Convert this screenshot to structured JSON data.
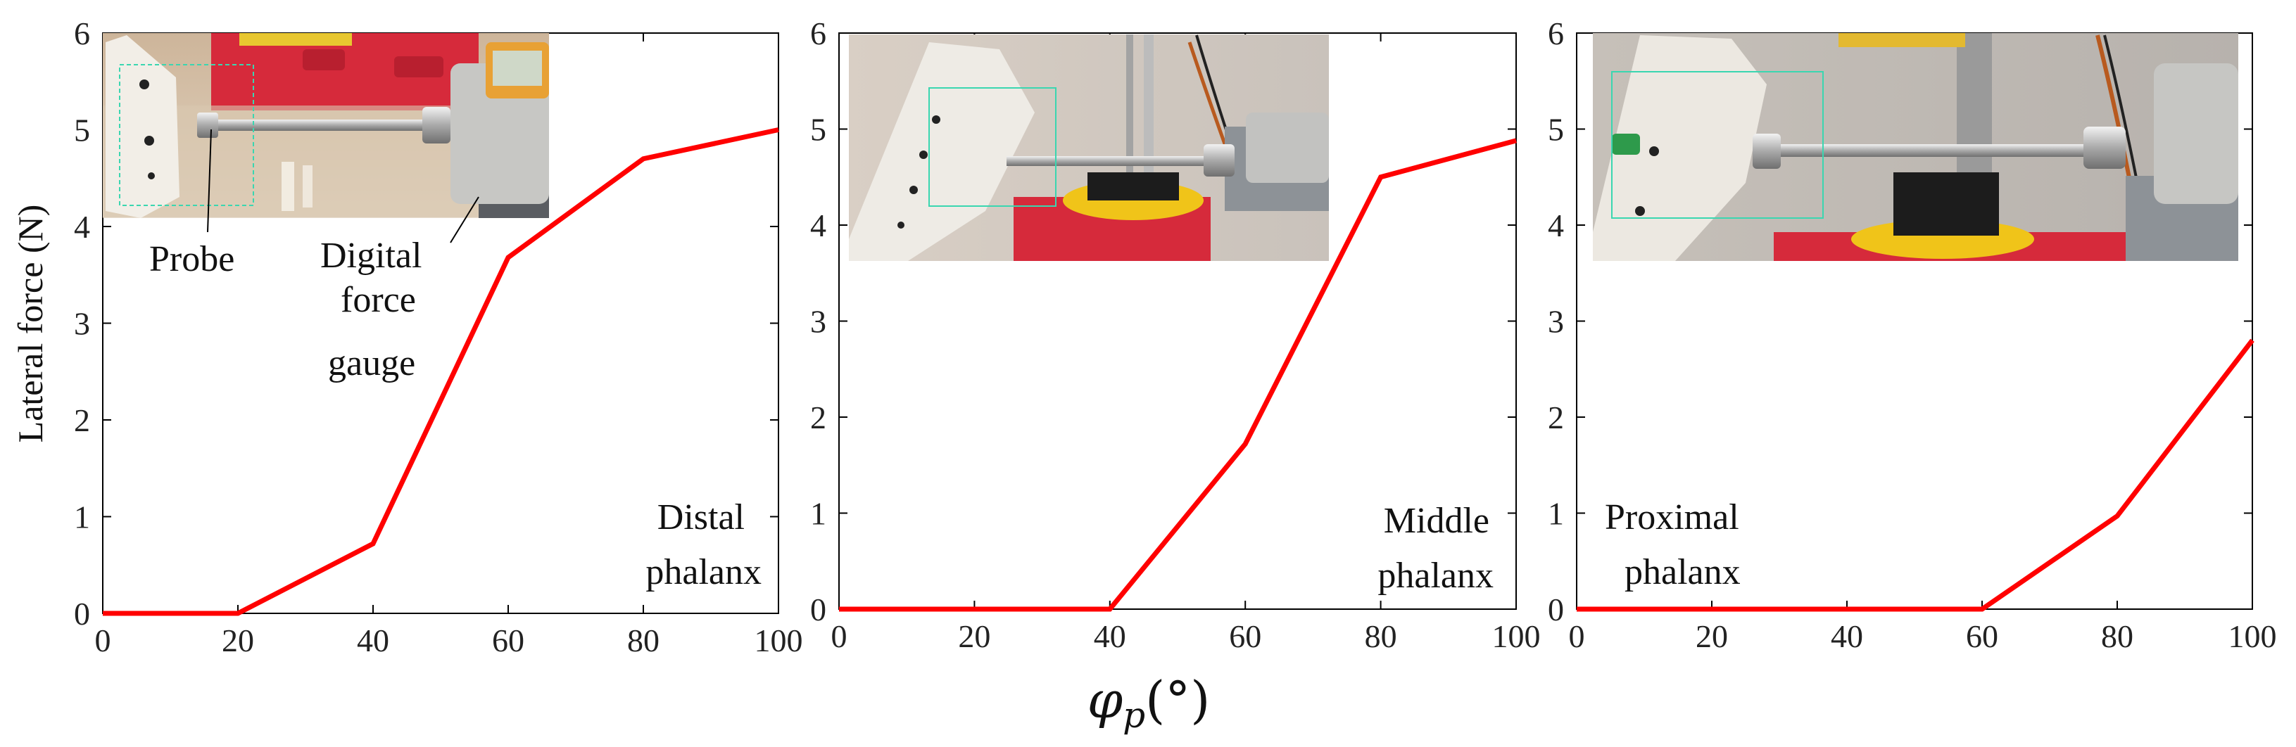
{
  "chart_data": [
    {
      "type": "line",
      "panel_label": [
        "Distal",
        "phalanx"
      ],
      "ylabel": "Lateral force (N)",
      "xlim": [
        0,
        100
      ],
      "ylim": [
        0,
        6
      ],
      "x_ticks": [
        0,
        20,
        40,
        60,
        80,
        100
      ],
      "y_ticks": [
        0,
        1,
        2,
        3,
        4,
        5,
        6
      ],
      "series": [
        {
          "name": "Distal phalanx",
          "color": "#ff0000",
          "x": [
            0,
            20,
            40,
            60,
            80,
            100
          ],
          "y": [
            0,
            0,
            0.72,
            3.68,
            4.7,
            5.0
          ]
        }
      ],
      "inset": {
        "description": "Photo of distal phalanx test setup",
        "annotations": [
          "Probe",
          "Digital force gauge"
        ]
      }
    },
    {
      "type": "line",
      "panel_label": [
        "Middle",
        "phalanx"
      ],
      "xlim": [
        0,
        100
      ],
      "ylim": [
        0,
        6
      ],
      "x_ticks": [
        0,
        20,
        40,
        60,
        80,
        100
      ],
      "y_ticks": [
        0,
        1,
        2,
        3,
        4,
        5,
        6
      ],
      "series": [
        {
          "name": "Middle phalanx",
          "color": "#ff0000",
          "x": [
            0,
            20,
            40,
            60,
            80,
            100
          ],
          "y": [
            0,
            0,
            0,
            1.72,
            4.5,
            4.88
          ]
        }
      ],
      "inset": {
        "description": "Photo of middle phalanx test setup"
      }
    },
    {
      "type": "line",
      "panel_label": [
        "Proximal",
        "phalanx"
      ],
      "xlim": [
        0,
        100
      ],
      "ylim": [
        0,
        6
      ],
      "x_ticks": [
        0,
        20,
        40,
        60,
        80,
        100
      ],
      "y_ticks": [
        0,
        1,
        2,
        3,
        4,
        5,
        6
      ],
      "series": [
        {
          "name": "Proximal phalanx",
          "color": "#ff0000",
          "x": [
            0,
            20,
            40,
            60,
            80,
            100
          ],
          "y": [
            0,
            0,
            0,
            0,
            0.97,
            2.8
          ]
        }
      ],
      "inset": {
        "description": "Photo of proximal phalanx test setup"
      }
    }
  ],
  "inset_annotations": {
    "probe_label": "Probe",
    "gauge_label": [
      "Digital",
      "force",
      "gauge"
    ]
  },
  "xlabel": {
    "main": "φ",
    "sub": "p",
    "unit": "(°)"
  },
  "colors": {
    "line": "#ff0000",
    "axis": "#000000",
    "photo_box": "#3ad6b0"
  }
}
